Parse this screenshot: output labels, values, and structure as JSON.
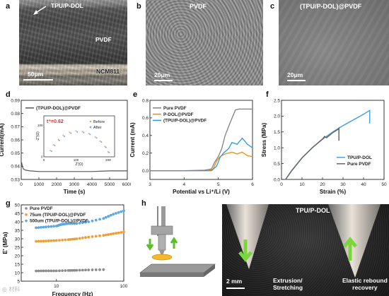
{
  "panels": {
    "a": {
      "letter": "a",
      "top_label": "TPU/P-DOL",
      "mid_label": "PVDF",
      "bottom_label": "NCM811",
      "scale": "50μm"
    },
    "b": {
      "letter": "b",
      "title": "PVDF",
      "scale": "20μm"
    },
    "c": {
      "letter": "c",
      "title": "(TPU/P-DOL)@PVDF",
      "scale": "20μm"
    },
    "d": {
      "letter": "d"
    },
    "e": {
      "letter": "e"
    },
    "f": {
      "letter": "f"
    },
    "g": {
      "letter": "g"
    },
    "h": {
      "letter": "h",
      "photo_title": "TPU/P-DOL",
      "scale": "2 mm",
      "caption_left": "Extrusion/\nStretching",
      "caption_right": "Elastic rebound\nrecovery"
    }
  },
  "watermark": "◎ 材料",
  "chart_data": [
    {
      "id": "d",
      "type": "line",
      "legend": [
        "(TPU/P-DOL)@PVDF"
      ],
      "xlabel": "Time (s)",
      "ylabel": "Current(mA)",
      "xlim": [
        0,
        6000
      ],
      "ylim": [
        0.03,
        0.09
      ],
      "xticks": [
        0,
        1000,
        2000,
        3000,
        4000,
        5000,
        6000
      ],
      "yticks": [
        0.03,
        0.04,
        0.05,
        0.06,
        0.07,
        0.08,
        0.09
      ],
      "series": [
        {
          "name": "(TPU/P-DOL)@PVDF",
          "color": "#555555",
          "x": [
            0,
            20,
            60,
            120,
            250,
            500,
            1000,
            2000,
            3000,
            4000,
            5000,
            6000
          ],
          "y": [
            0.041,
            0.043,
            0.04,
            0.038,
            0.037,
            0.0365,
            0.036,
            0.036,
            0.036,
            0.036,
            0.0365,
            0.0365
          ]
        }
      ],
      "inset": {
        "annotation": "t⁺=0.62",
        "legend": [
          "Before",
          "After"
        ],
        "xlabel": "Z'(Ω)",
        "ylabel": "-Z''(Ω)",
        "xticks": [
          "0",
          "100",
          "200"
        ],
        "yticks": [
          "0",
          "100"
        ],
        "xlim": [
          0,
          220
        ],
        "ylim": [
          0,
          130
        ],
        "series": [
          {
            "name": "Before",
            "color": "#f4a460",
            "x": [
              15,
              20,
              30,
              45,
              60,
              80,
              100,
              120,
              140,
              160,
              175,
              190,
              200,
              207
            ],
            "y": [
              0,
              20,
              38,
              55,
              68,
              78,
              82,
              80,
              74,
              63,
              50,
              33,
              16,
              0
            ]
          },
          {
            "name": "After",
            "color": "#6aa8e8",
            "x": [
              18,
              24,
              34,
              48,
              64,
              84,
              104,
              124,
              144,
              164,
              179,
              193,
              203,
              210
            ],
            "y": [
              0,
              18,
              36,
              52,
              65,
              75,
              79,
              77,
              71,
              60,
              47,
              30,
              14,
              0
            ]
          }
        ]
      }
    },
    {
      "id": "e",
      "type": "line",
      "legend": [
        "Pure PVDF",
        "P-DOL@PVDF",
        "(TPU/P-DOL)@PVDF"
      ],
      "xlabel": "Potential vs Li⁺/Li (V)",
      "ylabel": "Current (mA)",
      "xlim": [
        3,
        6
      ],
      "ylim": [
        -0.1,
        0.8
      ],
      "xticks": [
        3,
        4,
        5,
        6
      ],
      "yticks": [
        0.0,
        0.2,
        0.4,
        0.6,
        0.8
      ],
      "series": [
        {
          "name": "Pure PVDF",
          "color": "#808080",
          "x": [
            3,
            4,
            4.6,
            4.8,
            4.9,
            5.0,
            5.1,
            5.2,
            5.35,
            5.5,
            5.6,
            6.0
          ],
          "y": [
            0,
            0,
            0.005,
            0.02,
            0.1,
            0.16,
            0.25,
            0.4,
            0.55,
            0.69,
            0.7,
            0.7
          ]
        },
        {
          "name": "P-DOL@PVDF",
          "color": "#f08c00",
          "x": [
            3,
            4,
            4.7,
            4.85,
            4.95,
            5.05,
            5.2,
            5.4,
            5.55,
            5.7,
            5.85,
            6.0
          ],
          "y": [
            0,
            0,
            0,
            0.02,
            0.11,
            0.16,
            0.19,
            0.21,
            0.19,
            0.21,
            0.17,
            0.16
          ]
        },
        {
          "name": "(TPU/P-DOL)@PVDF",
          "color": "#2b98e4",
          "x": [
            3,
            4,
            4.8,
            4.95,
            5.05,
            5.15,
            5.3,
            5.4,
            5.55,
            5.7,
            5.85,
            6.0
          ],
          "y": [
            0,
            0,
            0,
            0.05,
            0.15,
            0.2,
            0.25,
            0.32,
            0.3,
            0.37,
            0.3,
            0.26
          ]
        }
      ]
    },
    {
      "id": "f",
      "type": "line",
      "legend": [
        "TPU/P-DOL",
        "Pure PVDF"
      ],
      "xlabel": "Strain (%)",
      "ylabel": "Stress (MPa)",
      "xlim": [
        0,
        50
      ],
      "ylim": [
        0,
        2.5
      ],
      "xticks": [
        0,
        10,
        20,
        30,
        40,
        50
      ],
      "yticks": [
        0.0,
        0.5,
        1.0,
        1.5,
        2.0,
        2.5
      ],
      "series": [
        {
          "name": "TPU/P-DOL",
          "color": "#4aa3df",
          "x": [
            2,
            5,
            10,
            15,
            20,
            25,
            30,
            35,
            40,
            43,
            43
          ],
          "y": [
            0,
            0.28,
            0.68,
            1.0,
            1.27,
            1.5,
            1.7,
            1.88,
            2.06,
            2.18,
            1.77
          ]
        },
        {
          "name": "Pure PVDF",
          "color": "#666666",
          "x": [
            2,
            5,
            10,
            15,
            20,
            21,
            22,
            25,
            27.5,
            28,
            28
          ],
          "y": [
            0,
            0.28,
            0.68,
            1.0,
            1.28,
            1.36,
            1.32,
            1.48,
            1.58,
            1.62,
            1.22
          ]
        }
      ]
    },
    {
      "id": "g",
      "type": "scatter",
      "legend": [
        "Pure PVDF",
        "75um (TPU/P-DOL)@PVDF",
        "500um (TPU/P-DOL)@PVDF"
      ],
      "xlabel": "Frequency (Hz)",
      "ylabel": "E' (MPa)",
      "xscale": "log",
      "xlim": [
        3,
        100
      ],
      "ylim": [
        5,
        50
      ],
      "xticks": [
        "10",
        "100"
      ],
      "yticks": [
        5,
        10,
        15,
        20,
        25,
        30,
        35,
        40,
        45,
        50
      ],
      "series": [
        {
          "name": "Pure PVDF",
          "color": "#8c8c8c",
          "x": [
            5,
            7,
            10,
            15,
            20,
            30,
            50
          ],
          "y": [
            11,
            11.1,
            11.1,
            11.3,
            11.4,
            11.6,
            11.8
          ]
        },
        {
          "name": "75um (TPU/P-DOL)@PVDF",
          "color": "#f39c34",
          "x": [
            5,
            7,
            10,
            15,
            20,
            30,
            50,
            70,
            100
          ],
          "y": [
            28.5,
            28.7,
            29,
            29.5,
            30,
            31,
            32,
            33,
            34
          ]
        },
        {
          "name": "500um (TPU/P-DOL)@PVDF",
          "color": "#5aa9e6",
          "x": [
            5,
            7,
            10,
            12,
            15,
            20,
            30,
            50,
            70,
            100
          ],
          "y": [
            36.5,
            37,
            37.5,
            38.5,
            39,
            39,
            40,
            42,
            44.5,
            46.5
          ]
        }
      ]
    }
  ]
}
